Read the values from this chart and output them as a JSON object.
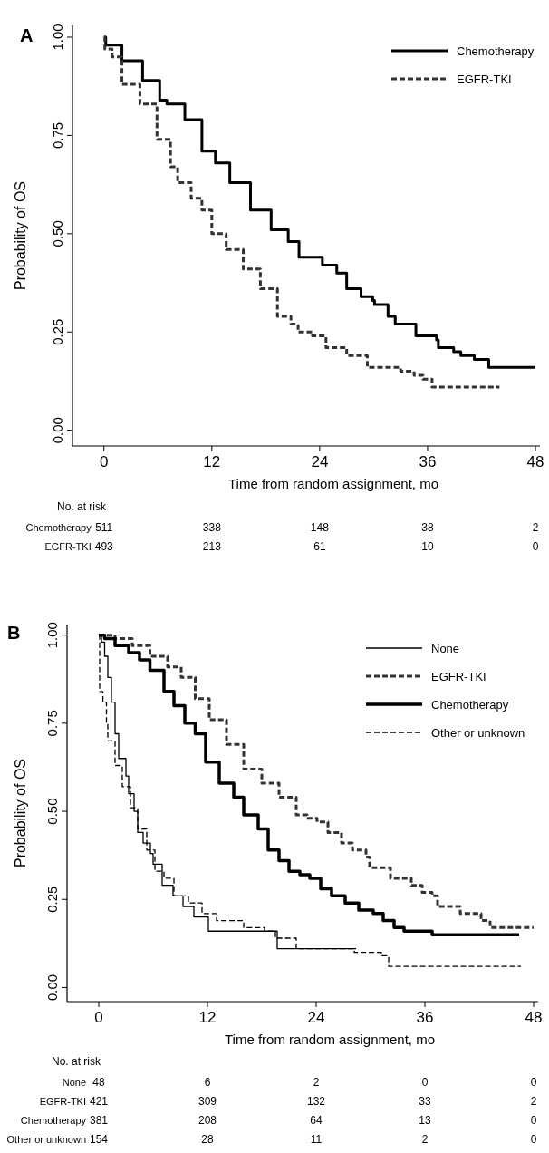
{
  "chart_data": [
    {
      "type": "step",
      "title": "A",
      "xlabel": "Time from random assignment, mo",
      "ylabel": "Probability of OS",
      "xlim": [
        -3.5,
        48.5
      ],
      "ylim": [
        -0.04,
        1.03
      ],
      "xticks": [
        0,
        12,
        24,
        36,
        48
      ],
      "yticks": [
        {
          "value": 0,
          "label": "0.00"
        },
        {
          "value": 0.25,
          "label": "0.25"
        },
        {
          "value": 0.5,
          "label": "0.50"
        },
        {
          "value": 0.75,
          "label": "0.75"
        },
        {
          "value": 1,
          "label": "1.00"
        }
      ],
      "legend": "top right",
      "grid": false,
      "series": [
        {
          "name": "Chemotherapy",
          "color": "#000000",
          "line_style": "solid",
          "x": [
            0,
            0.2,
            2,
            4.3,
            6.2,
            7,
            9,
            10.9,
            12.4,
            14,
            16.3,
            18.6,
            20.5,
            21.7,
            24.3,
            25.9,
            27,
            28.6,
            29.9,
            30.1,
            31.6,
            32.4,
            33.7,
            34.7,
            37,
            37.2,
            38.9,
            39.7,
            41.2,
            42.8,
            48
          ],
          "values": [
            1,
            0.98,
            0.94,
            0.89,
            0.84,
            0.83,
            0.79,
            0.71,
            0.68,
            0.63,
            0.56,
            0.51,
            0.48,
            0.44,
            0.42,
            0.4,
            0.36,
            0.34,
            0.33,
            0.32,
            0.29,
            0.27,
            0.27,
            0.24,
            0.23,
            0.21,
            0.2,
            0.19,
            0.18,
            0.16,
            0.16
          ]
        },
        {
          "name": "EGFR-TKI",
          "color": "#333333",
          "line_style": "dashed",
          "x": [
            0,
            0.1,
            0.9,
            2,
            4,
            5.9,
            7.4,
            8.2,
            9.7,
            10.9,
            12,
            13.6,
            15.5,
            17.4,
            19.3,
            20.8,
            21.6,
            23.2,
            24.7,
            27,
            29.3,
            31.3,
            33,
            34.5,
            35.5,
            36.5,
            44
          ],
          "values": [
            1,
            0.97,
            0.95,
            0.88,
            0.83,
            0.74,
            0.67,
            0.63,
            0.59,
            0.56,
            0.5,
            0.46,
            0.41,
            0.36,
            0.29,
            0.27,
            0.25,
            0.24,
            0.21,
            0.19,
            0.16,
            0.16,
            0.15,
            0.14,
            0.13,
            0.11,
            0.11
          ]
        }
      ],
      "annotations": [
        "No. at risk",
        "Chemotherapy",
        "511",
        "338",
        "148",
        "38",
        "2",
        "EGFR-TKI",
        "493",
        "213",
        "61",
        "10",
        "0"
      ]
    },
    {
      "type": "step",
      "title": "B",
      "xlabel": "Time from random assignment, mo",
      "ylabel": "Probability of OS",
      "xlim": [
        -3.5,
        48.5
      ],
      "ylim": [
        -0.04,
        1.03
      ],
      "xticks": [
        0,
        12,
        24,
        36,
        48
      ],
      "yticks": [
        {
          "value": 0,
          "label": "0.00"
        },
        {
          "value": 0.25,
          "label": "0.25"
        },
        {
          "value": 0.5,
          "label": "0.50"
        },
        {
          "value": 0.75,
          "label": "0.75"
        },
        {
          "value": 1,
          "label": "1.00"
        }
      ],
      "legend": "top right",
      "grid": false,
      "series": [
        {
          "name": "None",
          "color": "#000000",
          "line_style": "solid",
          "x": [
            0,
            0.3,
            0.65,
            1,
            1.4,
            1.8,
            2.2,
            3,
            3.3,
            3.9,
            4.3,
            4.9,
            5.7,
            6,
            7,
            8.2,
            9.3,
            10.5,
            12.1,
            19.7,
            28.4
          ],
          "values": [
            1,
            0.98,
            0.94,
            0.88,
            0.81,
            0.72,
            0.65,
            0.6,
            0.55,
            0.5,
            0.44,
            0.41,
            0.38,
            0.35,
            0.29,
            0.26,
            0.23,
            0.2,
            0.16,
            0.11,
            0.11
          ]
        },
        {
          "name": "EGFR-TKI",
          "color": "#333333",
          "line_style": "dashed",
          "x": [
            0,
            1.8,
            3.7,
            5.65,
            7.6,
            9.1,
            10.65,
            12.2,
            14.1,
            16,
            18,
            19.9,
            21.8,
            23,
            24.1,
            25.3,
            26.8,
            28,
            29.5,
            29.9,
            31.4,
            32.2,
            33.7,
            34.5,
            35.7,
            36.8,
            37.4,
            38.7,
            39.9,
            41,
            42.2,
            43,
            43.2,
            48
          ],
          "values": [
            1,
            0.99,
            0.97,
            0.94,
            0.91,
            0.88,
            0.82,
            0.76,
            0.69,
            0.62,
            0.58,
            0.54,
            0.49,
            0.48,
            0.47,
            0.44,
            0.41,
            0.39,
            0.37,
            0.34,
            0.34,
            0.31,
            0.31,
            0.29,
            0.27,
            0.26,
            0.23,
            0.23,
            0.21,
            0.21,
            0.19,
            0.19,
            0.17,
            0.17
          ]
        },
        {
          "name": "Chemotherapy",
          "color": "#000000",
          "line_style": "solid",
          "x": [
            0,
            0.65,
            1.8,
            3.3,
            4.5,
            5.65,
            7.2,
            8.3,
            9.5,
            10.65,
            11.8,
            13.3,
            14.9,
            16,
            17.6,
            18.7,
            19.9,
            21,
            22.2,
            23.3,
            24.5,
            25.7,
            27.2,
            28.7,
            30.3,
            31.4,
            32.6,
            33.7,
            36.8,
            46.4
          ],
          "values": [
            1,
            0.99,
            0.97,
            0.95,
            0.93,
            0.9,
            0.84,
            0.8,
            0.75,
            0.72,
            0.64,
            0.58,
            0.54,
            0.49,
            0.45,
            0.39,
            0.36,
            0.33,
            0.32,
            0.31,
            0.28,
            0.26,
            0.24,
            0.22,
            0.21,
            0.19,
            0.17,
            0.16,
            0.15,
            0.15
          ]
        },
        {
          "name": "Other or unknown",
          "color": "#000000",
          "line_style": "dashed",
          "x": [
            0,
            0.1,
            0.46,
            0.85,
            1,
            1.8,
            2.6,
            3.5,
            4.3,
            5.3,
            6.2,
            7.2,
            8.3,
            9.9,
            11.4,
            13,
            16,
            18.3,
            19.5,
            21,
            21.8,
            26.6,
            28.2,
            31.2,
            32,
            46.6
          ],
          "values": [
            1,
            0.84,
            0.81,
            0.75,
            0.7,
            0.63,
            0.57,
            0.51,
            0.45,
            0.39,
            0.33,
            0.31,
            0.26,
            0.24,
            0.21,
            0.19,
            0.17,
            0.16,
            0.14,
            0.14,
            0.11,
            0.11,
            0.1,
            0.09,
            0.06,
            0.06
          ]
        }
      ],
      "annotations": [
        "No. at risk",
        "None",
        "48",
        "6",
        "2",
        "0",
        "0",
        "EGFR-TKI",
        "421",
        "309",
        "132",
        "33",
        "2",
        "Chemotherapy",
        "381",
        "208",
        "64",
        "13",
        "0",
        "Other or unknown",
        "154",
        "28",
        "11",
        "2",
        "0"
      ]
    }
  ]
}
